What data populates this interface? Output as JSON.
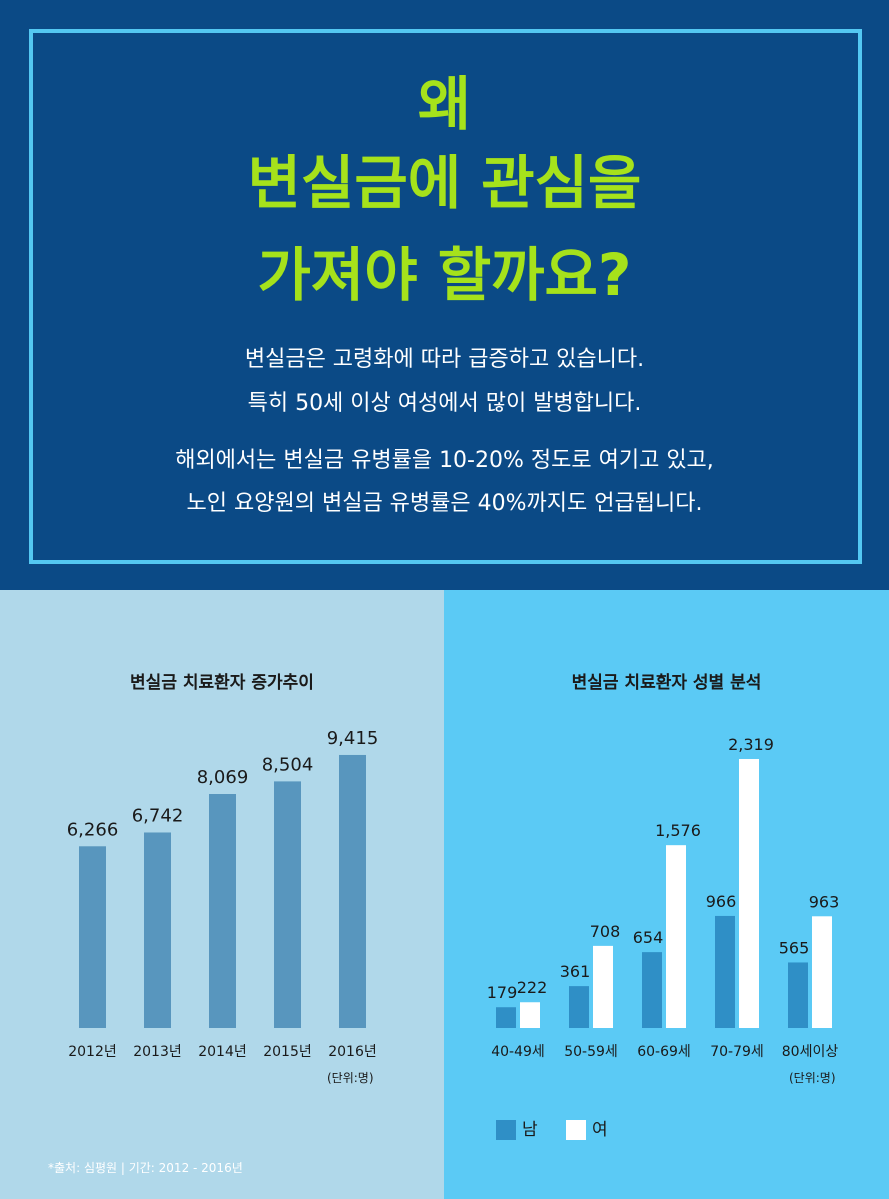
{
  "header": {
    "title_lines": [
      "왜",
      "변실금에 관심을",
      "가져야 할까요?"
    ],
    "para1_lines": [
      "변실금은 고령화에 따라 급증하고 있습니다.",
      "특히 50세 이상 여성에서 많이 발병합니다."
    ],
    "para2_lines": [
      "해외에서는 변실금 유병률을 10-20% 정도로 여기고 있고,",
      "노인 요양원의 변실금 유병률은 40%까지도 언급됩니다."
    ]
  },
  "colors": {
    "header_bg": "#0b4a86",
    "frame": "#54c8f2",
    "headline": "#a6e21b",
    "left_bg": "#b0d8ea",
    "right_bg": "#5bcaf5",
    "bar_trend": "#5896be",
    "bar_male": "#2f8fc6",
    "bar_female": "#ffffff"
  },
  "source_note": "*출처: 심평원 | 기간: 2012 - 2016년",
  "chart_data": [
    {
      "type": "bar",
      "title": "변실금 치료환자 증가추이",
      "categories": [
        "2012년",
        "2013년",
        "2014년",
        "2015년",
        "2016년"
      ],
      "values": [
        6266,
        6742,
        8069,
        8504,
        9415
      ],
      "value_labels": [
        "6,266",
        "6,742",
        "8,069",
        "8,504",
        "9,415"
      ],
      "unit": "(단위:명)",
      "ylim": [
        0,
        10000
      ]
    },
    {
      "type": "bar",
      "title": "변실금 치료환자 성별 분석",
      "categories": [
        "40-49세",
        "50-59세",
        "60-69세",
        "70-79세",
        "80세이상"
      ],
      "series": [
        {
          "name": "남",
          "values": [
            179,
            361,
            654,
            966,
            565
          ],
          "value_labels": [
            "179",
            "361",
            "654",
            "966",
            "565"
          ],
          "color": "#2f8fc6"
        },
        {
          "name": "여",
          "values": [
            222,
            708,
            1576,
            2319,
            963
          ],
          "value_labels": [
            "222",
            "708",
            "1,576",
            "2,319",
            "963"
          ],
          "color": "#ffffff"
        }
      ],
      "unit": "(단위:명)",
      "ylim": [
        0,
        2500
      ]
    }
  ]
}
